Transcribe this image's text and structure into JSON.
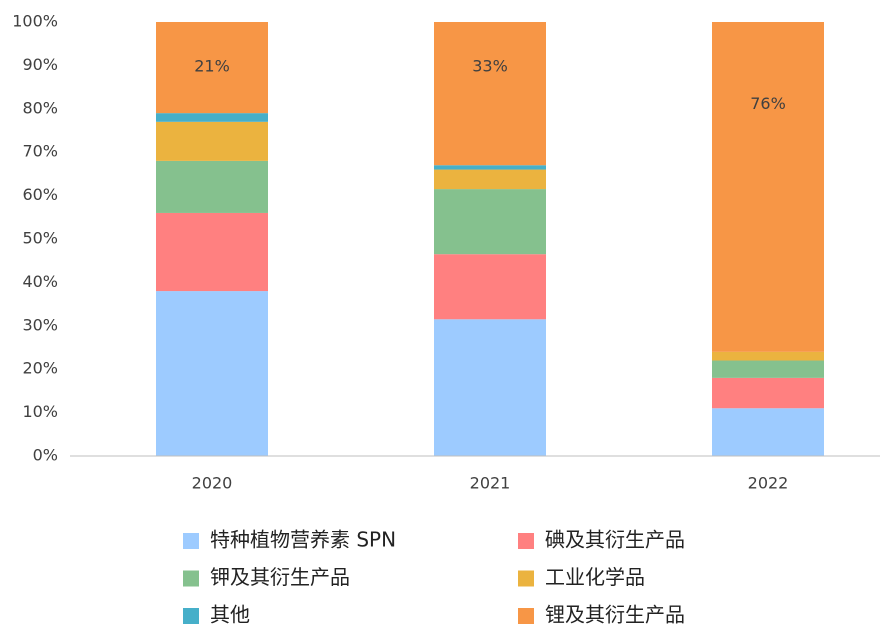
{
  "chart_data": {
    "type": "stacked_bar",
    "categories": [
      "2020",
      "2021",
      "2022"
    ],
    "series": [
      {
        "name": "特种植物营养素 SPN",
        "color": "#9dcbff",
        "values": [
          38,
          31.5,
          11
        ]
      },
      {
        "name": "碘及其衍生产品",
        "color": "#ff8080",
        "values": [
          18,
          15,
          7
        ]
      },
      {
        "name": "钾及其衍生产品",
        "color": "#85c18e",
        "values": [
          12,
          15,
          4
        ]
      },
      {
        "name": "工业化学品",
        "color": "#ebb33f",
        "values": [
          9,
          4.5,
          2
        ]
      },
      {
        "name": "其他",
        "color": "#46afc9",
        "values": [
          2,
          1,
          0
        ]
      },
      {
        "name": "锂及其衍生产品",
        "color": "#f79646",
        "values": [
          21,
          33,
          76
        ],
        "value_labels": [
          "21%",
          "33%",
          "76%"
        ]
      }
    ],
    "ylim": [
      0,
      100
    ],
    "yticks": [
      {
        "value": 0,
        "label": "0%"
      },
      {
        "value": 10,
        "label": "10%"
      },
      {
        "value": 20,
        "label": "20%"
      },
      {
        "value": 30,
        "label": "30%"
      },
      {
        "value": 40,
        "label": "40%"
      },
      {
        "value": 50,
        "label": "50%"
      },
      {
        "value": 60,
        "label": "60%"
      },
      {
        "value": 70,
        "label": "70%"
      },
      {
        "value": 80,
        "label": "80%"
      },
      {
        "value": 90,
        "label": "90%"
      },
      {
        "value": 100,
        "label": "100%"
      }
    ],
    "legend": "bottom"
  }
}
